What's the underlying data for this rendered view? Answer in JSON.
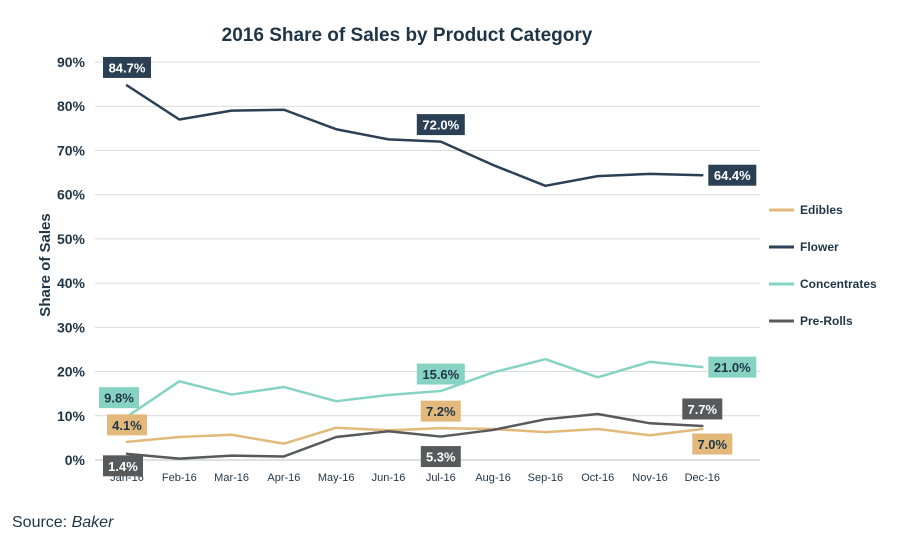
{
  "source": {
    "prefix": "Source:",
    "name": "Baker"
  },
  "chart_data": {
    "type": "line",
    "title": "2016 Share of Sales by Product Category",
    "xlabel": "",
    "ylabel": "Share of Sales",
    "ylim": [
      0,
      90
    ],
    "yticks": [
      "0%",
      "10%",
      "20%",
      "30%",
      "40%",
      "50%",
      "60%",
      "70%",
      "80%",
      "90%"
    ],
    "categories": [
      "Jan-16",
      "Feb-16",
      "Mar-16",
      "Apr-16",
      "May-16",
      "Jun-16",
      "Jul-16",
      "Aug-16",
      "Sep-16",
      "Oct-16",
      "Nov-16",
      "Dec-16"
    ],
    "grid": true,
    "legend_position": "right",
    "series": [
      {
        "name": "Edibles",
        "color": "#e2b97a",
        "values": [
          4.1,
          5.2,
          5.7,
          3.7,
          7.3,
          6.7,
          7.2,
          7.0,
          6.3,
          7.0,
          5.6,
          7.0
        ],
        "labels": [
          {
            "index": 0,
            "text": "4.1%"
          },
          {
            "index": 6,
            "text": "7.2%"
          },
          {
            "index": 11,
            "text": "7.0%"
          }
        ]
      },
      {
        "name": "Flower",
        "color": "#2b3f55",
        "values": [
          84.7,
          77.0,
          79.0,
          79.2,
          74.8,
          72.5,
          72.0,
          66.7,
          62.0,
          64.2,
          64.7,
          64.4
        ],
        "labels": [
          {
            "index": 0,
            "text": "84.7%"
          },
          {
            "index": 6,
            "text": "72.0%"
          },
          {
            "index": 11,
            "text": "64.4%"
          }
        ]
      },
      {
        "name": "Concentrates",
        "color": "#86d3c3",
        "values": [
          9.8,
          17.8,
          14.8,
          16.5,
          13.3,
          14.7,
          15.6,
          19.8,
          22.8,
          18.7,
          22.2,
          21.0
        ],
        "labels": [
          {
            "index": 0,
            "text": "9.8%"
          },
          {
            "index": 6,
            "text": "15.6%"
          },
          {
            "index": 11,
            "text": "21.0%"
          }
        ]
      },
      {
        "name": "Pre-Rolls",
        "color": "#58595b",
        "values": [
          1.4,
          0.3,
          1.0,
          0.8,
          5.2,
          6.5,
          5.3,
          6.8,
          9.2,
          10.4,
          8.3,
          7.7
        ],
        "labels": [
          {
            "index": 0,
            "text": "1.4%"
          },
          {
            "index": 6,
            "text": "5.3%"
          },
          {
            "index": 11,
            "text": "7.7%"
          }
        ]
      }
    ]
  }
}
